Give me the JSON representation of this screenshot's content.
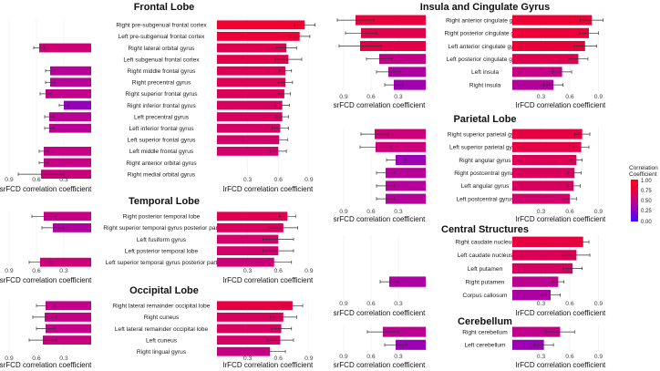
{
  "legend": {
    "title_line1": "Correlation",
    "title_line2": "Coefficient",
    "ticks": [
      "1.00",
      "0.75",
      "0.50",
      "0.25",
      "0.00"
    ],
    "stops": [
      "#ff0022",
      "#e8003c",
      "#c2008a",
      "#8a00c8",
      "#3a12ff"
    ]
  },
  "chart_data": [
    {
      "type": "bar",
      "title": "Frontal Lobe",
      "left_axis_ticks": [
        "0.9",
        "0.6",
        "0.3"
      ],
      "right_axis_ticks": [
        "0.3",
        "0.6",
        "0.9"
      ],
      "left_xlabel": "srFCD correlation coefficient",
      "right_xlabel": "lrFCD correlation coefficient",
      "categories": [
        "Right pre-subgenual frontal cortex",
        "Left pre-subgenual frontal cortex",
        "Right lateral orbital gyrus",
        "Left subgenual frontal cortex",
        "Right middle frontal gyrus",
        "Right precentral gyrus",
        "Right superior frontal gyrus",
        "Right inferior frontal gyrus",
        "Left precentral gyrus",
        "Left inferior frontal gyrus",
        "Left superior frontal gyrus",
        "Left middle frontal gyrus",
        "Right anterior orbital gyrus",
        "Right medial orbital gyrus"
      ],
      "series": [
        {
          "name": "srFCD",
          "values": [
            null,
            null,
            0.57,
            null,
            0.45,
            0.45,
            0.5,
            0.3,
            0.46,
            0.46,
            null,
            0.52,
            0.52,
            0.55
          ],
          "errors": [
            null,
            null,
            0.06,
            null,
            0.05,
            0.05,
            0.06,
            0.05,
            0.05,
            0.05,
            null,
            0.05,
            0.05,
            0.25
          ]
        },
        {
          "name": "lrFCD",
          "values": [
            0.86,
            0.81,
            0.68,
            0.7,
            0.67,
            0.67,
            0.66,
            0.64,
            0.64,
            0.62,
            0.61,
            0.6,
            null,
            null
          ],
          "errors": [
            0.1,
            0.1,
            0.1,
            0.13,
            0.06,
            0.07,
            0.06,
            0.07,
            0.06,
            0.08,
            0.08,
            0.08,
            null,
            null
          ]
        }
      ]
    },
    {
      "type": "bar",
      "title": "Temporal Lobe",
      "left_axis_ticks": [
        "0.9",
        "0.6",
        "0.3"
      ],
      "right_axis_ticks": [
        "0.3",
        "0.6",
        "0.9"
      ],
      "left_xlabel": "srFCD correlation coefficient",
      "right_xlabel": "lrFCD correlation coefficient",
      "categories": [
        "Right posterior temporal lobe",
        "Right superior temporal gyrus posterior part",
        "Left fusiform gyrus",
        "Left posterior temporal lobe",
        "Left superior temporal gyrus posterior part"
      ],
      "series": [
        {
          "name": "srFCD",
          "values": [
            0.52,
            0.42,
            null,
            null,
            0.56
          ],
          "errors": [
            0.13,
            0.12,
            null,
            null,
            0.12
          ]
        },
        {
          "name": "lrFCD",
          "values": [
            0.69,
            0.65,
            0.6,
            0.6,
            0.56
          ],
          "errors": [
            0.08,
            0.14,
            0.15,
            0.15,
            0.17
          ]
        }
      ]
    },
    {
      "type": "bar",
      "title": "Occipital Lobe",
      "left_axis_ticks": [
        "0.9",
        "0.6",
        "0.3"
      ],
      "right_axis_ticks": [
        "0.3",
        "0.6",
        "0.9"
      ],
      "left_xlabel": "srFCD correlation coefficient",
      "right_xlabel": "lrFCD correlation coefficient",
      "categories": [
        "Right lateral remainder occipital lobe",
        "Right cuneus",
        "Left lateral remainder occipital lobe",
        "Left cuneus",
        "Right lingual gyrus"
      ],
      "series": [
        {
          "name": "srFCD",
          "values": [
            0.5,
            0.51,
            0.5,
            0.53,
            null
          ],
          "errors": [
            0.1,
            0.13,
            0.1,
            0.15,
            null
          ]
        },
        {
          "name": "lrFCD",
          "values": [
            0.74,
            0.65,
            0.63,
            0.62,
            0.52
          ],
          "errors": [
            0.1,
            0.13,
            0.1,
            0.13,
            0.15
          ]
        }
      ]
    },
    {
      "type": "bar",
      "title": "Insula and Cingulate Gyrus",
      "left_axis_ticks": [
        "0.9",
        "0.6",
        "0.3"
      ],
      "right_axis_ticks": [
        "0.3",
        "0.6",
        "0.9"
      ],
      "left_xlabel": "srFCD correlation coefficient",
      "right_xlabel": "lrFCD correlation coefficient",
      "categories": [
        "Right anterior cingulate gyrus",
        "Right posterior cingulate gyrus",
        "Left anterior cingulate gyrus",
        "Left posterior cingulate gyrus",
        "Left insula",
        "Right insula"
      ],
      "series": [
        {
          "name": "srFCD",
          "values": [
            0.77,
            0.71,
            0.72,
            0.51,
            0.41,
            0.35
          ],
          "errors": [
            0.2,
            0.17,
            0.23,
            0.14,
            0.13,
            0.1
          ]
        },
        {
          "name": "lrFCD",
          "values": [
            0.83,
            0.8,
            0.76,
            0.69,
            0.52,
            0.43
          ],
          "errors": [
            0.12,
            0.1,
            0.12,
            0.1,
            0.1,
            0.1
          ]
        }
      ]
    },
    {
      "type": "bar",
      "title": "Parietal Lobe",
      "left_axis_ticks": [
        "0.9",
        "0.6",
        "0.3"
      ],
      "right_axis_ticks": [
        "0.3",
        "0.6",
        "0.9"
      ],
      "left_xlabel": "srFCD correlation coefficient",
      "right_xlabel": "lrFCD correlation coefficient",
      "categories": [
        "Right superior parietal gyrus",
        "Left superior parietal gyrus",
        "Right angular gyrus",
        "Right postcentral gyrus",
        "Left angular gyrus",
        "Left postcentral gyrus"
      ],
      "series": [
        {
          "name": "srFCD",
          "values": [
            0.56,
            0.55,
            0.33,
            0.44,
            0.44,
            0.44
          ],
          "errors": [
            0.15,
            0.17,
            0.1,
            0.1,
            0.1,
            0.1
          ]
        },
        {
          "name": "lrFCD",
          "values": [
            0.73,
            0.72,
            0.67,
            0.65,
            0.64,
            0.6
          ],
          "errors": [
            0.08,
            0.08,
            0.06,
            0.07,
            0.07,
            0.07
          ]
        }
      ]
    },
    {
      "type": "bar",
      "title": "Central Structures",
      "left_axis_ticks": [
        "0.9",
        "0.6",
        "0.3"
      ],
      "right_axis_ticks": [
        "0.3",
        "0.6",
        "0.9"
      ],
      "left_xlabel": "srFCD correlation coefficient",
      "right_xlabel": "lrFCD correlation coefficient",
      "categories": [
        "Right caudate nucleus",
        "Left caudate nucleus",
        "Left putamen",
        "Right putamen",
        "Corpus callosum"
      ],
      "series": [
        {
          "name": "srFCD",
          "values": [
            null,
            null,
            null,
            0.4,
            null
          ],
          "errors": [
            null,
            null,
            null,
            0.1,
            null
          ]
        },
        {
          "name": "lrFCD",
          "values": [
            0.74,
            0.67,
            0.63,
            0.48,
            0.4
          ],
          "errors": [
            0.06,
            0.14,
            0.1,
            0.06,
            0.1
          ]
        }
      ]
    },
    {
      "type": "bar",
      "title": "Cerebellum",
      "left_axis_ticks": [
        "0.9",
        "0.6",
        "0.3"
      ],
      "right_axis_ticks": [
        "0.3",
        "0.6",
        "0.9"
      ],
      "left_xlabel": "srFCD correlation coefficient",
      "right_xlabel": "lrFCD correlation coefficient",
      "categories": [
        "Right cerebellum",
        "Left cerebellum"
      ],
      "series": [
        {
          "name": "srFCD",
          "values": [
            0.47,
            0.33
          ],
          "errors": [
            0.17,
            0.12
          ]
        },
        {
          "name": "lrFCD",
          "values": [
            0.5,
            0.33
          ],
          "errors": [
            0.15,
            0.1
          ]
        }
      ]
    }
  ]
}
